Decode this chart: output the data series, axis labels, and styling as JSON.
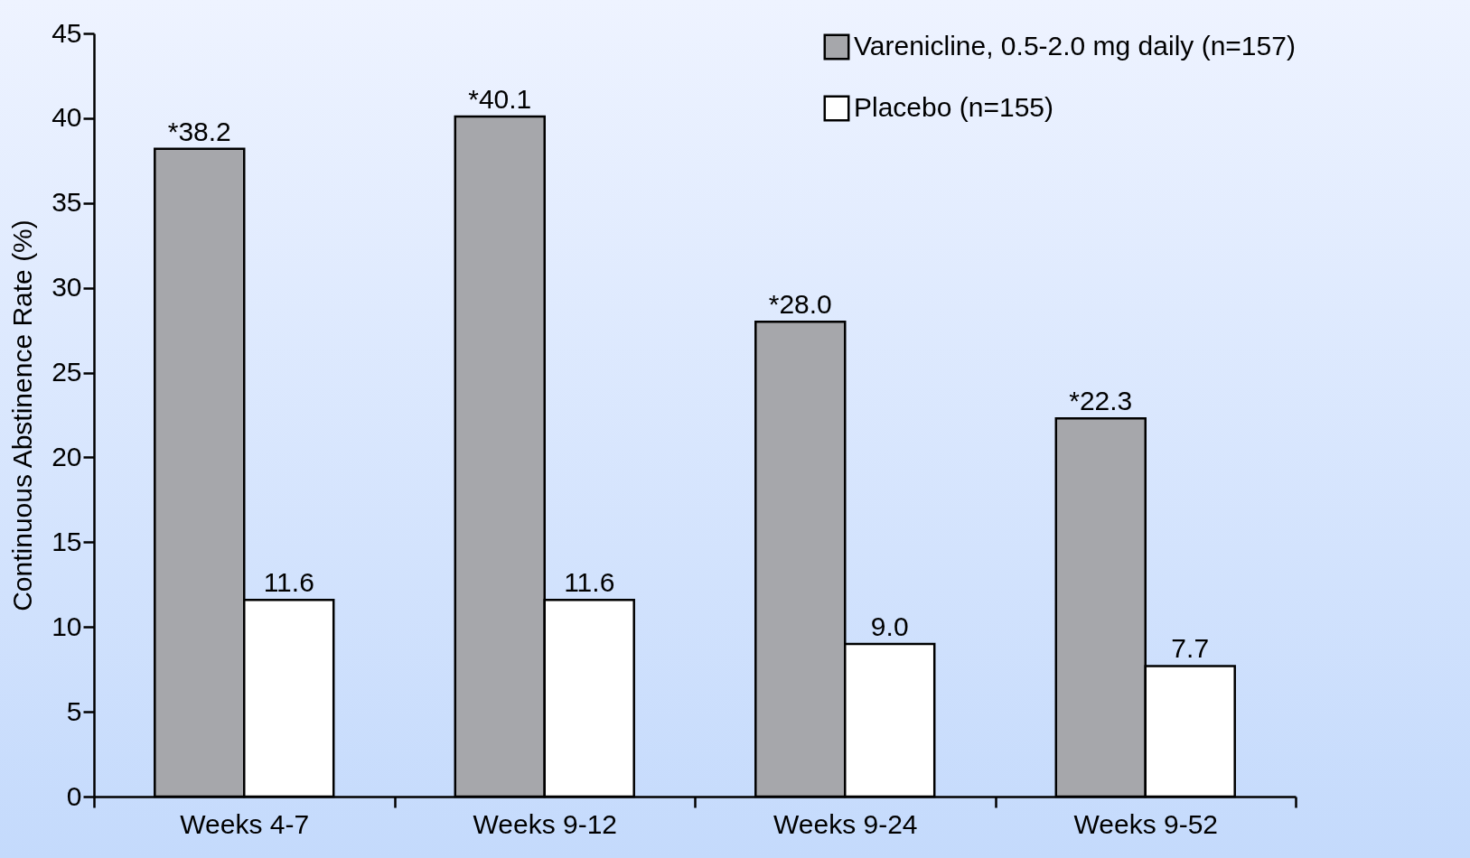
{
  "chart_data": {
    "type": "bar",
    "ylabel": "Continuous Abstinence Rate (%)",
    "categories": [
      "Weeks 4-7",
      "Weeks 9-12",
      "Weeks 9-24",
      "Weeks 9-52"
    ],
    "series": [
      {
        "name": "Varenicline, 0.5-2.0 mg daily (n=157)",
        "color": "#a6a7ab",
        "values": [
          38.2,
          40.1,
          28.0,
          22.3
        ],
        "value_labels": [
          "*38.2",
          "*40.1",
          "*28.0",
          "*22.3"
        ]
      },
      {
        "name": "Placebo (n=155)",
        "color": "#ffffff",
        "values": [
          11.6,
          11.6,
          9.0,
          7.7
        ],
        "value_labels": [
          "11.6",
          "11.6",
          "9.0",
          "7.7"
        ]
      }
    ],
    "ylim": [
      0,
      45
    ],
    "yticks": [
      0,
      5,
      10,
      15,
      20,
      25,
      30,
      35,
      40,
      45
    ],
    "grid": false,
    "legend": "top right"
  }
}
